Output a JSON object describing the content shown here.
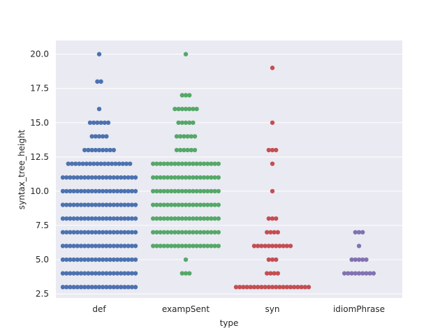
{
  "chart_data": {
    "type": "scatter",
    "subtype": "swarm",
    "xlabel": "type",
    "ylabel": "syntax_tree_height",
    "ylim": [
      2.2,
      21.0
    ],
    "yticks": [
      2.5,
      5.0,
      7.5,
      10.0,
      12.5,
      15.0,
      17.5,
      20.0
    ],
    "ytick_labels": [
      "2.5",
      "5.0",
      "7.5",
      "10.0",
      "12.5",
      "15.0",
      "17.5",
      "20.0"
    ],
    "grid": true,
    "background": "#eaeaf2",
    "categories": [
      "def",
      "exampSent",
      "syn",
      "idiomPhrase"
    ],
    "series": [
      {
        "name": "def",
        "color": "#4c72b0",
        "counts": [
          {
            "y": 3,
            "n": 21
          },
          {
            "y": 4,
            "n": 21
          },
          {
            "y": 5,
            "n": 21
          },
          {
            "y": 6,
            "n": 21
          },
          {
            "y": 7,
            "n": 21
          },
          {
            "y": 8,
            "n": 21
          },
          {
            "y": 9,
            "n": 21
          },
          {
            "y": 10,
            "n": 21
          },
          {
            "y": 11,
            "n": 21
          },
          {
            "y": 12,
            "n": 18
          },
          {
            "y": 13,
            "n": 9
          },
          {
            "y": 14,
            "n": 5
          },
          {
            "y": 15,
            "n": 6
          },
          {
            "y": 16,
            "n": 1
          },
          {
            "y": 18,
            "n": 2
          },
          {
            "y": 20,
            "n": 1
          }
        ]
      },
      {
        "name": "exampSent",
        "color": "#55a868",
        "counts": [
          {
            "y": 4,
            "n": 3
          },
          {
            "y": 5,
            "n": 1
          },
          {
            "y": 6,
            "n": 19
          },
          {
            "y": 7,
            "n": 19
          },
          {
            "y": 8,
            "n": 19
          },
          {
            "y": 9,
            "n": 19
          },
          {
            "y": 10,
            "n": 19
          },
          {
            "y": 11,
            "n": 19
          },
          {
            "y": 12,
            "n": 19
          },
          {
            "y": 13,
            "n": 6
          },
          {
            "y": 14,
            "n": 6
          },
          {
            "y": 15,
            "n": 5
          },
          {
            "y": 16,
            "n": 7
          },
          {
            "y": 17,
            "n": 3
          },
          {
            "y": 20,
            "n": 1
          }
        ]
      },
      {
        "name": "syn",
        "color": "#c44e52",
        "counts": [
          {
            "y": 3,
            "n": 21
          },
          {
            "y": 4,
            "n": 4
          },
          {
            "y": 5,
            "n": 3
          },
          {
            "y": 6,
            "n": 11
          },
          {
            "y": 7,
            "n": 4
          },
          {
            "y": 8,
            "n": 3
          },
          {
            "y": 10,
            "n": 1
          },
          {
            "y": 12,
            "n": 1
          },
          {
            "y": 13,
            "n": 3
          },
          {
            "y": 15,
            "n": 1
          },
          {
            "y": 19,
            "n": 1
          }
        ]
      },
      {
        "name": "idiomPhrase",
        "color": "#8172b2",
        "counts": [
          {
            "y": 4,
            "n": 9
          },
          {
            "y": 5,
            "n": 5
          },
          {
            "y": 6,
            "n": 1
          },
          {
            "y": 7,
            "n": 3
          }
        ]
      }
    ]
  }
}
